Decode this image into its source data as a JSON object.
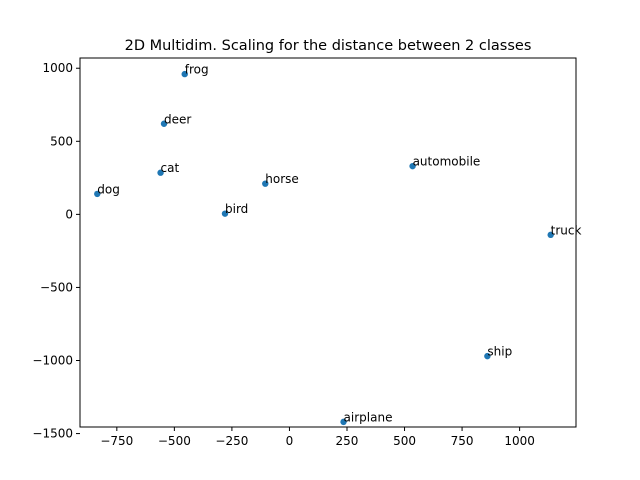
{
  "chart_data": {
    "type": "scatter",
    "title": "2D Multidim. Scaling for the distance between 2 classes",
    "xlabel": "",
    "ylabel": "",
    "xlim": [
      -910,
      1245
    ],
    "ylim": [
      -1455,
      1070
    ],
    "xticks": [
      -750,
      -500,
      -250,
      0,
      250,
      500,
      750,
      1000
    ],
    "yticks": [
      -1500,
      -1000,
      -500,
      0,
      500,
      1000
    ],
    "grid": false,
    "marker_color": "#1f77b4",
    "points": [
      {
        "label": "frog",
        "x": -455,
        "y": 960
      },
      {
        "label": "deer",
        "x": -545,
        "y": 620
      },
      {
        "label": "automobile",
        "x": 535,
        "y": 330
      },
      {
        "label": "cat",
        "x": -560,
        "y": 285
      },
      {
        "label": "horse",
        "x": -105,
        "y": 210
      },
      {
        "label": "dog",
        "x": -835,
        "y": 140
      },
      {
        "label": "bird",
        "x": -280,
        "y": 5
      },
      {
        "label": "truck",
        "x": 1135,
        "y": -140
      },
      {
        "label": "ship",
        "x": 860,
        "y": -970
      },
      {
        "label": "airplane",
        "x": 235,
        "y": -1420
      }
    ]
  }
}
